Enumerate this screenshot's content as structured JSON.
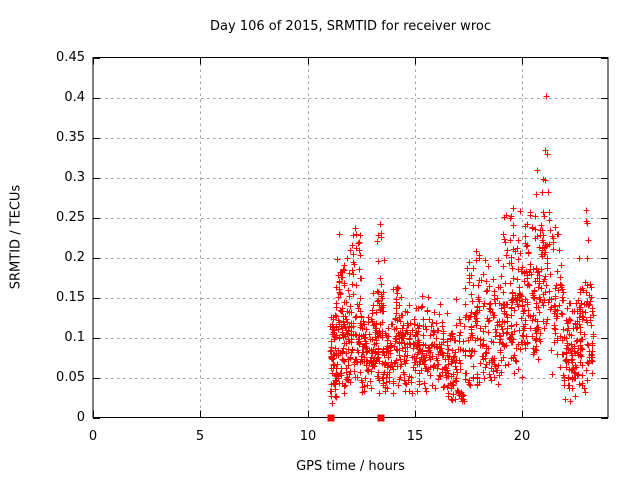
{
  "chart_data": {
    "type": "scatter",
    "title": "Day 106 of 2015, SRMTID for receiver wroc",
    "xlabel": "GPS time / hours",
    "ylabel": "SRMTID / TECUs",
    "xlim": [
      0,
      24
    ],
    "ylim": [
      0,
      0.45
    ],
    "xticks": [
      0,
      5,
      10,
      15,
      20
    ],
    "xtick_labels": [
      "0",
      "5",
      "10",
      "15",
      "20"
    ],
    "yticks": [
      0,
      0.05,
      0.1,
      0.15,
      0.2,
      0.25,
      0.3,
      0.35,
      0.4,
      0.45
    ],
    "ytick_labels": [
      "0",
      "0.05",
      "0.1",
      "0.15",
      "0.2",
      "0.25",
      "0.3",
      "0.35",
      "0.4",
      "0.45"
    ],
    "grid": true,
    "legend": "none",
    "series": [
      {
        "name": "srmtid-points",
        "marker": "plus",
        "color": "#ff0000",
        "seed": 20150106,
        "clusters": [
          {
            "x": [
              11.05,
              11.35
            ],
            "n": 60,
            "ylo": 0.015,
            "yhi": 0.13,
            "c": 0.06,
            "s": 0.03
          },
          {
            "x": [
              11.3,
              11.65
            ],
            "n": 50,
            "ylo": 0.04,
            "yhi": 0.225,
            "c": 0.1,
            "s": 0.05
          },
          {
            "x": [
              11.6,
              12.05
            ],
            "n": 65,
            "ylo": 0.03,
            "yhi": 0.21,
            "c": 0.09,
            "s": 0.045
          },
          {
            "x": [
              12.05,
              12.5
            ],
            "n": 60,
            "ylo": 0.05,
            "yhi": 0.235,
            "c": 0.11,
            "s": 0.05
          },
          {
            "x": [
              12.5,
              12.95
            ],
            "n": 50,
            "ylo": 0.03,
            "yhi": 0.13,
            "c": 0.075,
            "s": 0.025
          },
          {
            "x": [
              12.95,
              13.3
            ],
            "n": 50,
            "ylo": 0.04,
            "yhi": 0.16,
            "c": 0.09,
            "s": 0.03
          },
          {
            "x": [
              13.25,
              13.55
            ],
            "n": 45,
            "ylo": 0.02,
            "yhi": 0.24,
            "c": 0.1,
            "s": 0.055
          },
          {
            "x": [
              13.55,
              14.0
            ],
            "n": 45,
            "ylo": 0.03,
            "yhi": 0.12,
            "c": 0.07,
            "s": 0.025
          },
          {
            "x": [
              14.0,
              14.5
            ],
            "n": 60,
            "ylo": 0.04,
            "yhi": 0.165,
            "c": 0.1,
            "s": 0.03
          },
          {
            "x": [
              14.5,
              15.2
            ],
            "n": 75,
            "ylo": 0.03,
            "yhi": 0.15,
            "c": 0.09,
            "s": 0.03
          },
          {
            "x": [
              15.2,
              16.3
            ],
            "n": 105,
            "ylo": 0.03,
            "yhi": 0.155,
            "c": 0.085,
            "s": 0.03
          },
          {
            "x": [
              16.3,
              17.3
            ],
            "n": 90,
            "ylo": 0.02,
            "yhi": 0.15,
            "c": 0.07,
            "s": 0.03
          },
          {
            "x": [
              17.3,
              18.1
            ],
            "n": 80,
            "ylo": 0.04,
            "yhi": 0.21,
            "c": 0.09,
            "s": 0.04
          },
          {
            "x": [
              18.1,
              19.1
            ],
            "n": 100,
            "ylo": 0.04,
            "yhi": 0.2,
            "c": 0.09,
            "s": 0.035
          },
          {
            "x": [
              19.1,
              20.1
            ],
            "n": 115,
            "ylo": 0.05,
            "yhi": 0.265,
            "c": 0.13,
            "s": 0.05
          },
          {
            "x": [
              20.1,
              20.85
            ],
            "n": 95,
            "ylo": 0.07,
            "yhi": 0.26,
            "c": 0.15,
            "s": 0.045
          },
          {
            "x": [
              20.85,
              21.35
            ],
            "n": 50,
            "ylo": 0.1,
            "yhi": 0.3,
            "c": 0.18,
            "s": 0.05
          },
          {
            "x": [
              21.35,
              21.95
            ],
            "n": 55,
            "ylo": 0.05,
            "yhi": 0.23,
            "c": 0.13,
            "s": 0.05
          },
          {
            "x": [
              21.95,
              22.6
            ],
            "n": 80,
            "ylo": 0.015,
            "yhi": 0.15,
            "c": 0.075,
            "s": 0.03
          },
          {
            "x": [
              22.6,
              23.3
            ],
            "n": 85,
            "ylo": 0.03,
            "yhi": 0.21,
            "c": 0.1,
            "s": 0.045
          }
        ],
        "notable_points": [
          [
            21.1,
            0.402
          ],
          [
            21.08,
            0.335
          ],
          [
            21.15,
            0.33
          ],
          [
            20.7,
            0.31
          ],
          [
            20.65,
            0.28
          ],
          [
            21.2,
            0.282
          ],
          [
            19.55,
            0.262
          ],
          [
            19.9,
            0.258
          ],
          [
            20.35,
            0.253
          ],
          [
            22.98,
            0.259
          ],
          [
            22.96,
            0.246
          ],
          [
            23.02,
            0.243
          ],
          [
            23.05,
            0.222
          ],
          [
            23.0,
            0.2
          ],
          [
            11.45,
            0.23
          ],
          [
            12.2,
            0.237
          ],
          [
            12.24,
            0.229
          ],
          [
            13.38,
            0.242
          ],
          [
            13.42,
            0.231
          ],
          [
            21.52,
            0.238
          ],
          [
            17.85,
            0.208
          ],
          [
            17.5,
            0.195
          ]
        ]
      },
      {
        "name": "flagged-epochs",
        "marker": "filled-square",
        "color": "#ff0000",
        "points": [
          [
            11.1,
            0
          ],
          [
            13.4,
            0
          ]
        ]
      }
    ]
  },
  "styles": {
    "point_color": "#ff0000",
    "grid_color": "#a0a0a0",
    "axis_color": "#000000",
    "text_color": "#000000",
    "background": "#ffffff"
  }
}
